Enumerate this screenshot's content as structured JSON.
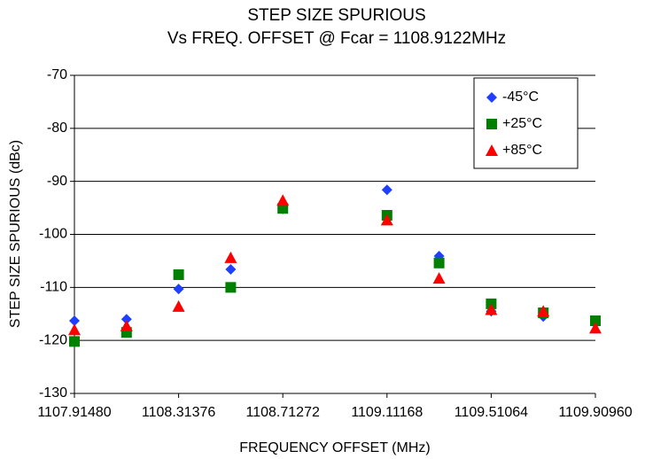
{
  "chart_data": {
    "type": "scatter",
    "title": "STEP SIZE SPURIOUS",
    "subtitle": "Vs FREQ. OFFSET @ Fcar = 1108.9122MHz",
    "x_label": "FREQUENCY OFFSET (MHz)",
    "y_label": "STEP SIZE SPURIOUS (dBc)",
    "xlim": [
      1107.9148,
      1109.9096
    ],
    "xticks": [
      {
        "value": 1107.9148,
        "label": "1107.91480"
      },
      {
        "value": 1108.31376,
        "label": "1108.31376"
      },
      {
        "value": 1108.71272,
        "label": "1108.71272"
      },
      {
        "value": 1109.11168,
        "label": "1109.11168"
      },
      {
        "value": 1109.51064,
        "label": "1109.51064"
      },
      {
        "value": 1109.9096,
        "label": "1109.90960"
      }
    ],
    "ylim": [
      -130,
      -70
    ],
    "yticks": [
      -130,
      -120,
      -110,
      -100,
      -90,
      -80,
      -70
    ],
    "grid": true,
    "legend": "upper right",
    "series": [
      {
        "name": "-45°C",
        "color": "#1f3fff",
        "marker": "diamond",
        "x": [
          1107.9148,
          1108.11428,
          1108.31376,
          1108.51324,
          1108.71272,
          1109.11168,
          1109.31116,
          1109.51064,
          1109.71012,
          1109.9096
        ],
        "values": [
          -116.3,
          -116,
          -110.3,
          -106.6,
          -95.2,
          -91.6,
          -104.1,
          -114.5,
          -115.5,
          -116.3
        ]
      },
      {
        "name": "+25°C",
        "color": "#008000",
        "marker": "square",
        "x": [
          1107.9148,
          1108.11428,
          1108.31376,
          1108.51324,
          1108.71272,
          1109.11168,
          1109.31116,
          1109.51064,
          1109.71012,
          1109.9096
        ],
        "values": [
          -120.2,
          -118.5,
          -107.6,
          -110,
          -95.1,
          -96.4,
          -105.4,
          -113.1,
          -114.8,
          -116.3
        ]
      },
      {
        "name": "+85°C",
        "color": "#ff0000",
        "marker": "triangle",
        "x": [
          1107.9148,
          1108.11428,
          1108.31376,
          1108.51324,
          1108.71272,
          1109.11168,
          1109.31116,
          1109.51064,
          1109.71012,
          1109.9096
        ],
        "values": [
          -118,
          -117.3,
          -113.6,
          -104.4,
          -93.6,
          -97.3,
          -108.3,
          -114.2,
          -114.5,
          -117.7
        ]
      }
    ]
  }
}
